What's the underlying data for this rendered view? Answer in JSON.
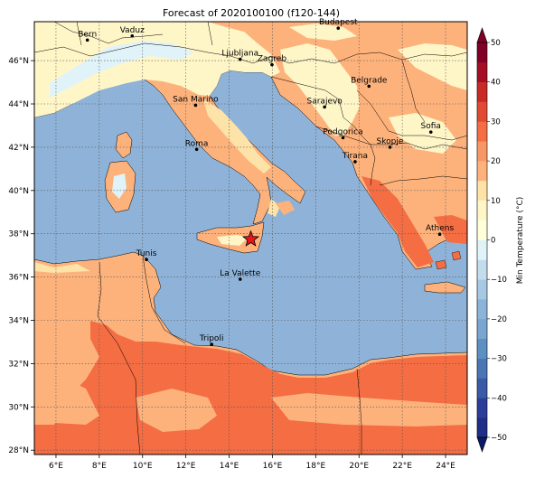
{
  "chart_data": {
    "type": "heatmap",
    "title": "Forecast of 2020100100 (f120-144)",
    "xlabel": "",
    "ylabel": "",
    "x_ticks": [
      "6°E",
      "8°E",
      "10°E",
      "12°E",
      "14°E",
      "16°E",
      "18°E",
      "20°E",
      "22°E",
      "24°E"
    ],
    "x_tick_values": [
      6,
      8,
      10,
      12,
      14,
      16,
      18,
      20,
      22,
      24
    ],
    "y_ticks": [
      "28°N",
      "30°N",
      "32°N",
      "34°N",
      "36°N",
      "38°N",
      "40°N",
      "42°N",
      "44°N",
      "46°N"
    ],
    "y_tick_values": [
      28,
      30,
      32,
      34,
      36,
      38,
      40,
      42,
      44,
      46
    ],
    "xlim": [
      5,
      25
    ],
    "ylim": [
      27.8,
      47.8
    ],
    "grid": true,
    "colorbar": {
      "label": "Min Temperature (°C)",
      "ticks": [
        "−50",
        "−40",
        "−30",
        "−20",
        "−10",
        "0",
        "10",
        "20",
        "30",
        "40",
        "50"
      ],
      "tick_values": [
        -50,
        -40,
        -30,
        -20,
        -10,
        0,
        10,
        20,
        30,
        40,
        50
      ],
      "levels": [
        -50,
        -45,
        -40,
        -35,
        -30,
        -25,
        -20,
        -15,
        -10,
        -5,
        0,
        5,
        10,
        15,
        20,
        25,
        30,
        35,
        40,
        45,
        50
      ],
      "colors": [
        "#1f2f86",
        "#2c3c99",
        "#3a5aa8",
        "#4a76b6",
        "#5c8fc2",
        "#7aa5cf",
        "#8cb4d8",
        "#a6c8e2",
        "#c2dcec",
        "#e0f3f8",
        "#ffffd9",
        "#fff6c8",
        "#fee3a8",
        "#fdb27c",
        "#f89766",
        "#f46d43",
        "#e04a33",
        "#c82a25",
        "#a50f26",
        "#800026"
      ]
    },
    "field_colors": {
      "sea": "#8fb3d8",
      "band_0_5": "#e0f3f8",
      "band_5_10": "#fff6c8",
      "band_10_15": "#fee3a8",
      "band_15_20": "#fdb27c",
      "band_20_25": "#f46d43"
    },
    "cities": [
      {
        "name": "Bern",
        "lon": 7.45,
        "lat": 46.95
      },
      {
        "name": "Vaduz",
        "lon": 9.52,
        "lat": 47.14
      },
      {
        "name": "Budapest",
        "lon": 19.04,
        "lat": 47.5
      },
      {
        "name": "Ljubljana",
        "lon": 14.51,
        "lat": 46.06
      },
      {
        "name": "Zagreb",
        "lon": 15.98,
        "lat": 45.81
      },
      {
        "name": "Belgrade",
        "lon": 20.46,
        "lat": 44.82
      },
      {
        "name": "San Marino",
        "lon": 12.45,
        "lat": 43.94
      },
      {
        "name": "Sarajevo",
        "lon": 18.41,
        "lat": 43.86
      },
      {
        "name": "Sofia",
        "lon": 23.32,
        "lat": 42.7
      },
      {
        "name": "Podgorica",
        "lon": 19.26,
        "lat": 42.44
      },
      {
        "name": "Skopje",
        "lon": 21.43,
        "lat": 42.0
      },
      {
        "name": "Roma",
        "lon": 12.5,
        "lat": 41.9
      },
      {
        "name": "Tirana",
        "lon": 19.82,
        "lat": 41.33
      },
      {
        "name": "Athens",
        "lon": 23.73,
        "lat": 37.98
      },
      {
        "name": "Tunis",
        "lon": 10.18,
        "lat": 36.81
      },
      {
        "name": "La Valette",
        "lon": 14.51,
        "lat": 35.9
      },
      {
        "name": "Tripoli",
        "lon": 13.19,
        "lat": 32.89
      }
    ],
    "marker": {
      "name": "star",
      "lon": 15.0,
      "lat": 37.75,
      "color": "#e8141b"
    }
  }
}
